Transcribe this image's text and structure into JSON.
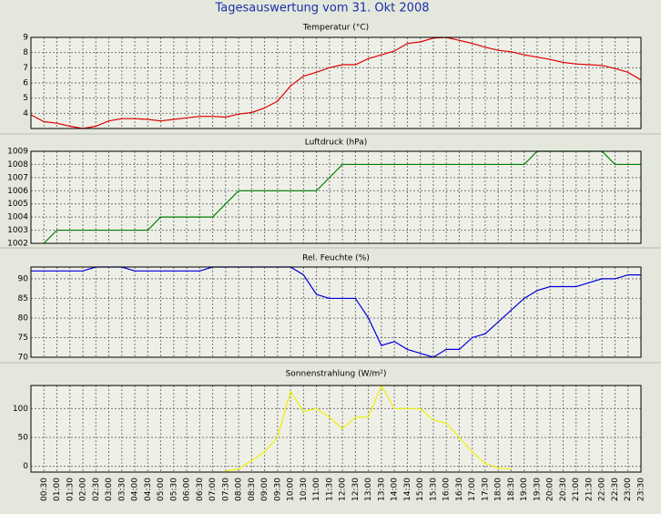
{
  "title": "Tagesauswertung vom 31. Okt 2008",
  "chart_data": [
    {
      "type": "line",
      "title": "Temperatur (°C)",
      "ylim": [
        3,
        9
      ],
      "yticks": [
        4,
        5,
        6,
        7,
        8,
        9
      ],
      "grid": true,
      "series": [
        {
          "color": "#e00000",
          "values": [
            3.9,
            3.45,
            3.35,
            3.15,
            3.0,
            3.15,
            3.5,
            3.65,
            3.65,
            3.6,
            3.5,
            3.6,
            3.7,
            3.8,
            3.8,
            3.75,
            3.95,
            4.05,
            4.35,
            4.8,
            5.8,
            6.45,
            6.7,
            7.0,
            7.2,
            7.2,
            7.6,
            7.85,
            8.1,
            8.6,
            8.7,
            8.95,
            9.0,
            8.8,
            8.6,
            8.35,
            8.15,
            8.05,
            7.85,
            7.7,
            7.55,
            7.35,
            7.25,
            7.2,
            7.15,
            6.95,
            6.7,
            6.2
          ]
        }
      ]
    },
    {
      "type": "line",
      "title": "Luftdruck (hPa)",
      "ylim": [
        1002,
        1009
      ],
      "yticks": [
        1002,
        1003,
        1004,
        1005,
        1006,
        1007,
        1008,
        1009
      ],
      "grid": true,
      "series": [
        {
          "color": "#008000",
          "values": [
            null,
            1002,
            1003,
            1003,
            1003,
            1003,
            1003,
            1003,
            1003,
            1003,
            1004,
            1004,
            1004,
            1004,
            1004,
            1005,
            1006,
            1006,
            1006,
            1006,
            1006,
            1006,
            1006,
            1007,
            1008,
            1008,
            1008,
            1008,
            1008,
            1008,
            1008,
            1008,
            1008,
            1008,
            1008,
            1008,
            1008,
            1008,
            1008,
            1009,
            1009,
            1009,
            1009,
            1009,
            1009,
            1008,
            1008,
            1008
          ]
        }
      ]
    },
    {
      "type": "line",
      "title": "Rel. Feuchte (%)",
      "ylim": [
        70,
        93
      ],
      "yticks": [
        70,
        75,
        80,
        85,
        90
      ],
      "grid": true,
      "series": [
        {
          "color": "#0000e0",
          "values": [
            92,
            92,
            92,
            92,
            92,
            93,
            93,
            93,
            92,
            92,
            92,
            92,
            92,
            92,
            93,
            93,
            93,
            93,
            93,
            93,
            93,
            91,
            86,
            85,
            85,
            85,
            80,
            73,
            74,
            72,
            71,
            70,
            72,
            72,
            75,
            76,
            79,
            82,
            85,
            87,
            88,
            88,
            88,
            89,
            90,
            90,
            91,
            91
          ]
        }
      ]
    },
    {
      "type": "line",
      "title": "Sonnenstrahlung (W/m²)",
      "ylim": [
        -10,
        140
      ],
      "yticks": [
        0,
        50,
        100
      ],
      "grid": true,
      "categories": [
        null,
        "00:30",
        "01:00",
        "01:30",
        "02:00",
        "02:30",
        "03:00",
        "03:30",
        "04:00",
        "04:30",
        "05:00",
        "05:30",
        "06:00",
        "06:30",
        "07:00",
        "07:30",
        "08:00",
        "08:30",
        "09:00",
        "09:30",
        "10:00",
        "10:30",
        "11:00",
        "11:30",
        "12:00",
        "12:30",
        "13:00",
        "13:30",
        "14:00",
        "14:30",
        "15:00",
        "15:30",
        "16:00",
        "16:30",
        "17:00",
        "17:30",
        "18:00",
        "18:30",
        "19:00",
        "19:30",
        "20:00",
        "20:30",
        "21:00",
        "21:30",
        "22:00",
        "22:30",
        "23:00",
        "23:30"
      ],
      "series": [
        {
          "color": "#f0f000",
          "values": [
            null,
            null,
            null,
            null,
            null,
            null,
            null,
            null,
            null,
            null,
            null,
            null,
            null,
            null,
            null,
            -8,
            -5,
            10,
            25,
            50,
            130,
            95,
            100,
            85,
            65,
            85,
            85,
            140,
            100,
            100,
            100,
            80,
            75,
            50,
            25,
            5,
            -3,
            -5,
            null,
            null,
            null,
            null,
            null,
            null,
            null,
            null,
            null,
            null
          ]
        }
      ]
    }
  ]
}
